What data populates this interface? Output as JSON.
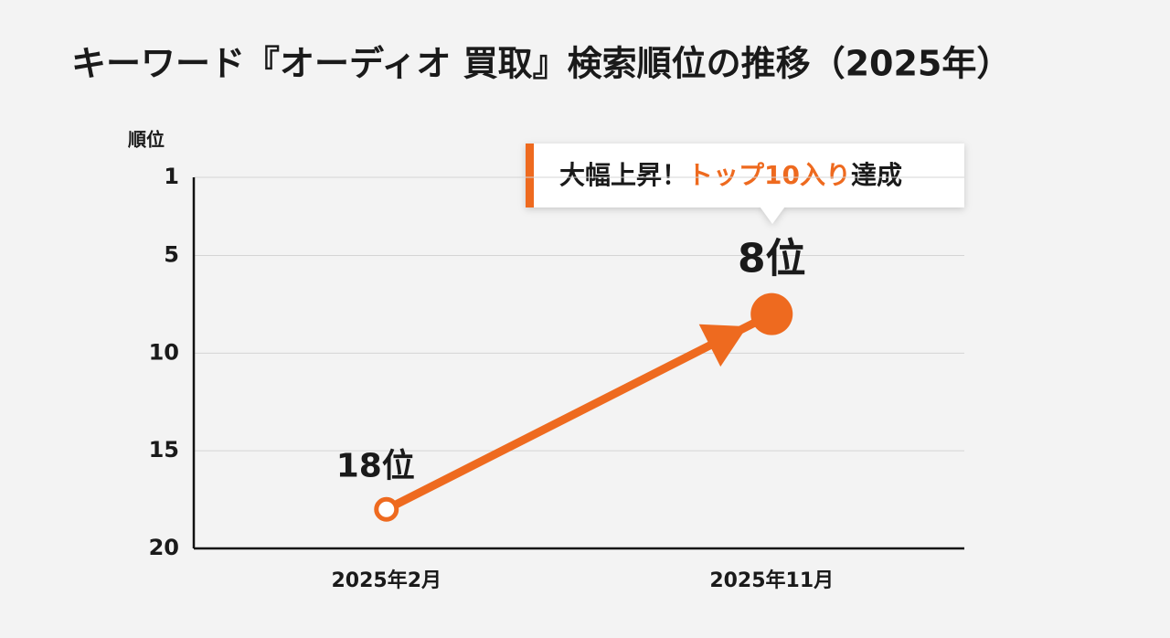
{
  "chart_data": {
    "type": "line",
    "title": "キーワード『オーディオ 買取』検索順位の推移（2025年）",
    "y_label": "順位",
    "categories": [
      "2025年2月",
      "2025年11月"
    ],
    "series": [
      {
        "name": "順位",
        "color": "#ee6a1f",
        "values": [
          18,
          8
        ],
        "value_labels": [
          "18位",
          "8位"
        ]
      }
    ],
    "ylim": [
      20,
      1
    ],
    "yticks": [
      1,
      5,
      10,
      15,
      20
    ],
    "grid": true,
    "annotation": [
      "大幅上昇！",
      "トップ10入り",
      "達成"
    ]
  }
}
